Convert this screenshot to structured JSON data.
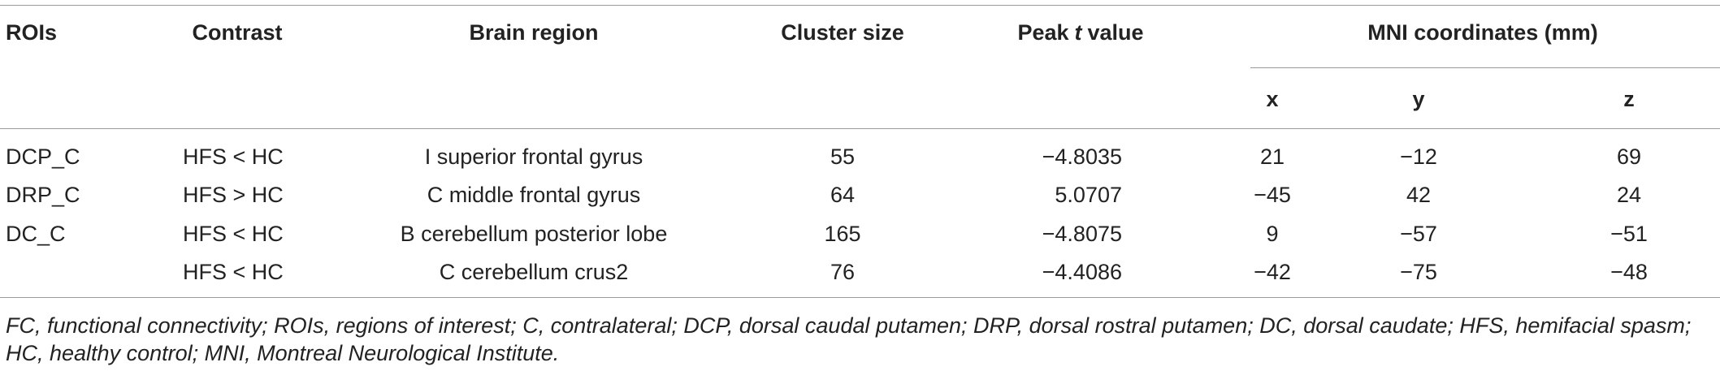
{
  "table": {
    "header": {
      "rois": "ROIs",
      "contrast": "Contrast",
      "brain_region": "Brain region",
      "cluster_size": "Cluster size",
      "peak_t": {
        "pre": "Peak",
        "var": "t",
        "post": "value"
      },
      "mni": "MNI coordinates (mm)",
      "x": "x",
      "y": "y",
      "z": "z"
    },
    "rows": [
      {
        "roi": "DCP_C",
        "contrast": "HFS < HC",
        "region": "I superior frontal gyrus",
        "cluster": "55",
        "peak": "−4.8035",
        "x": "21",
        "y": "−12",
        "z": "69"
      },
      {
        "roi": "DRP_C",
        "contrast": "HFS > HC",
        "region": "C middle frontal gyrus",
        "cluster": "64",
        "peak": "5.0707",
        "x": "−45",
        "y": "42",
        "z": "24"
      },
      {
        "roi": "DC_C",
        "contrast": "HFS < HC",
        "region": "B cerebellum posterior lobe",
        "cluster": "165",
        "peak": "−4.8075",
        "x": "9",
        "y": "−57",
        "z": "−51"
      },
      {
        "contrast": "HFS < HC",
        "region": "C cerebellum crus2",
        "cluster": "76",
        "peak": "−4.4086",
        "x": "−42",
        "y": "−75",
        "z": "−48"
      }
    ],
    "footnote": "FC, functional connectivity; ROIs, regions of interest; C, contralateral; DCP, dorsal caudal putamen; DRP, dorsal rostral putamen; DC, dorsal caudate; HFS, hemifacial spasm; HC, healthy control; MNI, Montreal Neurological Institute."
  }
}
